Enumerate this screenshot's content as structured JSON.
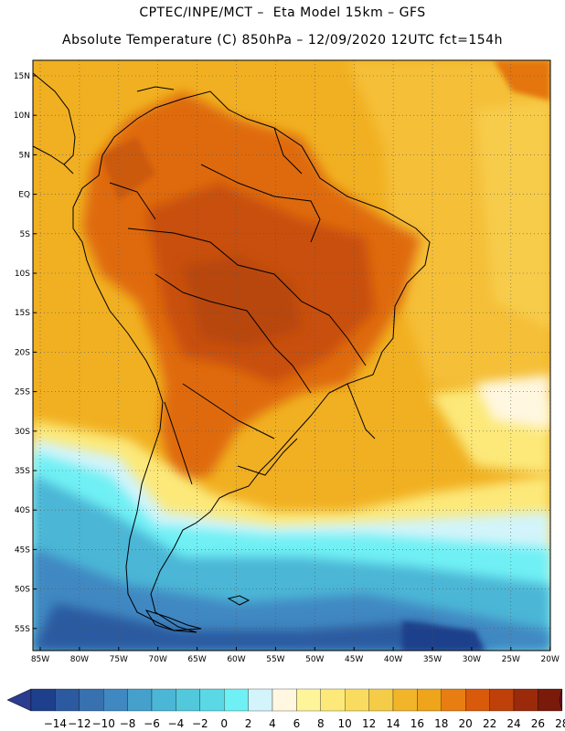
{
  "title": {
    "line1": "CPTEC/INPE/MCT –  Eta Model 15km – GFS",
    "line2": "Absolute Temperature (C) 850hPa – 12/09/2020 12UTC fct=154h"
  },
  "axes": {
    "lat_labels": [
      "15N",
      "10N",
      "5N",
      "EQ",
      "5S",
      "10S",
      "15S",
      "20S",
      "25S",
      "30S",
      "35S",
      "40S",
      "45S",
      "50S",
      "55S"
    ],
    "lon_labels": [
      "85W",
      "80W",
      "75W",
      "70W",
      "65W",
      "60W",
      "55W",
      "50W",
      "45W",
      "40W",
      "35W",
      "30W",
      "25W",
      "20W"
    ]
  },
  "colorbar": {
    "labels": [
      "-14",
      "-12",
      "-10",
      "-8",
      "-6",
      "-4",
      "-2",
      "0",
      "2",
      "4",
      "6",
      "8",
      "10",
      "12",
      "14",
      "16",
      "18",
      "20",
      "22",
      "24",
      "26",
      "28"
    ],
    "colors": [
      "#1e3f8c",
      "#2c5aa0",
      "#3771b0",
      "#3f88c2",
      "#45a0cc",
      "#4bb6d6",
      "#52c8dc",
      "#5ad8e6",
      "#6ff0f4",
      "#d2f4fa",
      "#fff7e0",
      "#fef49a",
      "#fce97a",
      "#f9dc5f",
      "#f5cc47",
      "#f2b52a",
      "#eea41b",
      "#e87e12",
      "#d95a0a",
      "#bf4008",
      "#9a2a0a",
      "#7a1a0a"
    ],
    "under_color": "#2a3d8f",
    "over_color": "#7a0a28"
  }
}
